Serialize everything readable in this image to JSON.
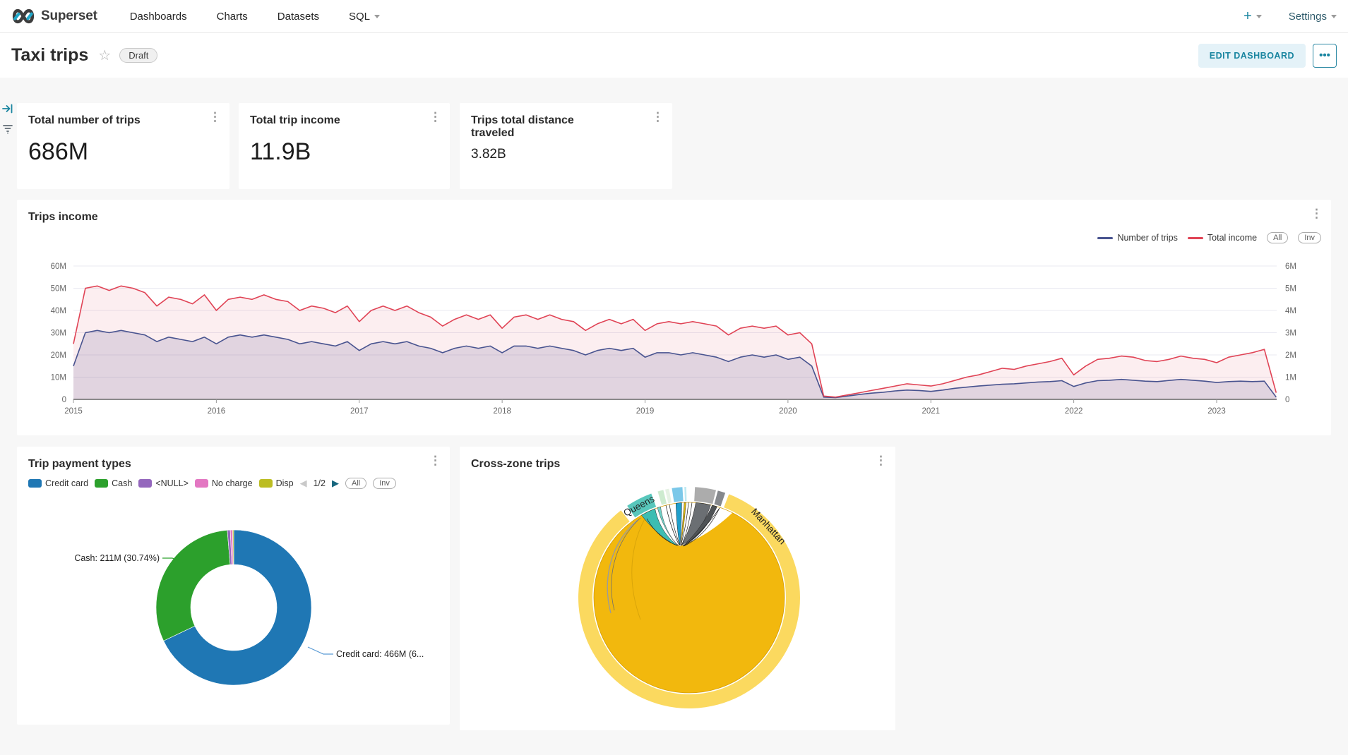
{
  "nav": {
    "brand": "Superset",
    "items": [
      {
        "label": "Dashboards"
      },
      {
        "label": "Charts"
      },
      {
        "label": "Datasets"
      },
      {
        "label": "SQL"
      }
    ],
    "plus_label": "+",
    "settings_label": "Settings"
  },
  "header": {
    "title": "Taxi trips",
    "status_badge": "Draft",
    "star_icon": "star-outline",
    "edit_button": "EDIT DASHBOARD",
    "more_button": "..."
  },
  "metric_cards": [
    {
      "title": "Total number of trips",
      "value": "686M"
    },
    {
      "title": "Total trip income",
      "value": "11.9B"
    },
    {
      "title": "Trips total distance traveled",
      "value": "3.82B"
    }
  ],
  "trips_income": {
    "title": "Trips income",
    "legend": [
      {
        "label": "Number of trips",
        "color": "#48538F"
      },
      {
        "label": "Total income",
        "color": "#E04355"
      }
    ],
    "buttons": {
      "all": "All",
      "inv": "Inv"
    }
  },
  "payment": {
    "title": "Trip payment types",
    "legend": [
      {
        "label": "Credit card",
        "color": "#1F77B4"
      },
      {
        "label": "Cash",
        "color": "#2CA02C"
      },
      {
        "label": "<NULL>",
        "color": "#9467BD"
      },
      {
        "label": "No charge",
        "color": "#E377C2"
      },
      {
        "label": "Disp",
        "color": "#BCBD22"
      }
    ],
    "pagination": {
      "current": "1/2",
      "prev": "◀",
      "next": "▶"
    },
    "buttons": {
      "all": "All",
      "inv": "Inv"
    },
    "labels": {
      "cash": "Cash: 211M (30.74%)",
      "credit": "Credit card: 466M (6..."
    }
  },
  "crosszone": {
    "title": "Cross-zone trips",
    "zones": {
      "queens": "Queens",
      "manhattan": "Manhattan"
    }
  },
  "chart_data": [
    {
      "type": "area",
      "title": "Trips income",
      "x_start": "2015-01",
      "x_interval": "month",
      "x_ticks": [
        2015,
        2016,
        2017,
        2018,
        2019,
        2020,
        2021,
        2022,
        2023
      ],
      "x_range": [
        2015.0,
        2023.42
      ],
      "ylim_left": [
        0,
        60
      ],
      "ylim_right": [
        0,
        6
      ],
      "y_ticks_left": [
        "60M",
        "50M",
        "40M",
        "30M",
        "20M",
        "10M",
        "0"
      ],
      "y_ticks_right": [
        "6M",
        "5M",
        "4M",
        "3M",
        "2M",
        "1M",
        "0"
      ],
      "grid": true,
      "legend_position": "top-right",
      "series": [
        {
          "name": "Number of trips",
          "axis": "left",
          "unit": "M",
          "color": "#48538F",
          "fill": "rgba(86,80,140,0.16)",
          "values": [
            15,
            30,
            31,
            30,
            31,
            30,
            29,
            26,
            28,
            27,
            26,
            28,
            25,
            28,
            29,
            28,
            29,
            28,
            27,
            25,
            26,
            25,
            24,
            26,
            22,
            25,
            26,
            25,
            26,
            24,
            23,
            21,
            23,
            24,
            23,
            24,
            21,
            24,
            24,
            23,
            24,
            23,
            22,
            20,
            22,
            23,
            22,
            23,
            19,
            21,
            21,
            20,
            21,
            20,
            19,
            17,
            19,
            20,
            19,
            20,
            18,
            19,
            15,
            1,
            0.8,
            1.5,
            2.2,
            2.8,
            3.2,
            3.8,
            4.2,
            4,
            3.6,
            4.2,
            5,
            5.5,
            6,
            6.4,
            6.8,
            7,
            7.4,
            7.8,
            8,
            8.4,
            5.8,
            7.4,
            8.4,
            8.6,
            9,
            8.6,
            8.2,
            8,
            8.5,
            9,
            8.6,
            8.2,
            7.6,
            8,
            8.2,
            8,
            8.2,
            1
          ]
        },
        {
          "name": "Total income",
          "axis": "right",
          "unit": "M",
          "color": "#E04355",
          "fill": "rgba(224,67,85,0.09)",
          "values": [
            2.5,
            5,
            5.1,
            4.9,
            5.1,
            5,
            4.8,
            4.2,
            4.6,
            4.5,
            4.3,
            4.7,
            4,
            4.5,
            4.6,
            4.5,
            4.7,
            4.5,
            4.4,
            4,
            4.2,
            4.1,
            3.9,
            4.2,
            3.5,
            4,
            4.2,
            4,
            4.2,
            3.9,
            3.7,
            3.3,
            3.6,
            3.8,
            3.6,
            3.8,
            3.2,
            3.7,
            3.8,
            3.6,
            3.8,
            3.6,
            3.5,
            3.1,
            3.4,
            3.6,
            3.4,
            3.6,
            3.1,
            3.4,
            3.5,
            3.4,
            3.5,
            3.4,
            3.3,
            2.9,
            3.2,
            3.3,
            3.2,
            3.3,
            2.9,
            3,
            2.5,
            0.15,
            0.1,
            0.2,
            0.3,
            0.4,
            0.5,
            0.6,
            0.7,
            0.65,
            0.6,
            0.7,
            0.85,
            1,
            1.1,
            1.25,
            1.4,
            1.35,
            1.5,
            1.6,
            1.7,
            1.85,
            1.1,
            1.5,
            1.8,
            1.85,
            1.95,
            1.9,
            1.75,
            1.7,
            1.8,
            1.95,
            1.85,
            1.8,
            1.65,
            1.9,
            2,
            2.1,
            2.25,
            0.3
          ]
        }
      ]
    },
    {
      "type": "pie",
      "subtype": "donut",
      "title": "Trip payment types",
      "total": "686M",
      "slices": [
        {
          "label": "Credit card",
          "value_m": 466,
          "pct": 67.93,
          "color": "#1F77B4"
        },
        {
          "label": "Cash",
          "value_m": 211,
          "pct": 30.74,
          "color": "#2CA02C"
        },
        {
          "label": "<NULL>",
          "value_m": 4.2,
          "pct": 0.61,
          "color": "#9467BD"
        },
        {
          "label": "No charge",
          "value_m": 3.3,
          "pct": 0.48,
          "color": "#E377C2"
        },
        {
          "label": "Disp",
          "value_m": 1.6,
          "pct": 0.23,
          "color": "#BCBD22"
        }
      ]
    },
    {
      "type": "chord",
      "title": "Cross-zone trips",
      "zones_visible": [
        "Manhattan",
        "Queens"
      ],
      "arcs": [
        {
          "zone": "Manhattan",
          "start": 21,
          "end": 322,
          "color": "#FBD95F"
        },
        {
          "zone": "Queens",
          "start": -34,
          "end": -20,
          "color": "#58C7BC"
        },
        {
          "start": -16.5,
          "end": -13.5,
          "color": "#CDEBCF"
        },
        {
          "start": -12.5,
          "end": -10.5,
          "color": "#E6F2E4"
        },
        {
          "start": -9,
          "end": -3.5,
          "color": "#7BC8E9"
        },
        {
          "start": -2.5,
          "end": -1.5,
          "color": "#BFE9F2"
        },
        {
          "start": 3,
          "end": 14,
          "color": "#ACACAC"
        },
        {
          "start": 15,
          "end": 19,
          "color": "#85888C"
        }
      ],
      "inner_disk_color": "#F2B80D"
    }
  ]
}
